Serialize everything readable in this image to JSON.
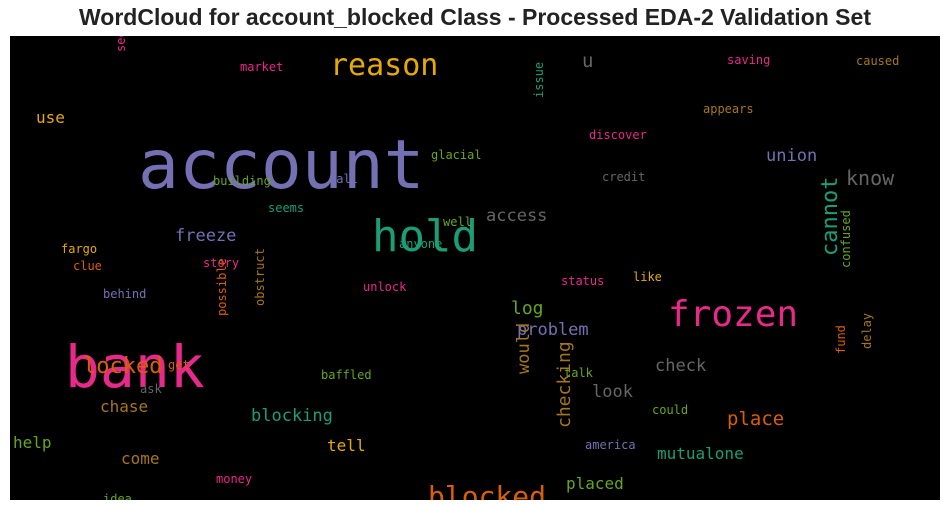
{
  "title": "WordCloud for account_blocked Class - Processed EDA-2 Validation Set",
  "chart_data": {
    "type": "wordcloud",
    "title": "WordCloud for account_blocked Class - Processed EDA-2 Validation Set",
    "background": "#000000",
    "words": [
      {
        "text": "account",
        "weight": 100,
        "color": "#7570b3",
        "orientation": "horizontal"
      },
      {
        "text": "bank",
        "weight": 85,
        "color": "#e7298a",
        "orientation": "horizontal"
      },
      {
        "text": "hold",
        "weight": 62,
        "color": "#1b9e77",
        "orientation": "horizontal"
      },
      {
        "text": "frozen",
        "weight": 52,
        "color": "#e7298a",
        "orientation": "horizontal"
      },
      {
        "text": "reason",
        "weight": 45,
        "color": "#e6ab02",
        "orientation": "horizontal"
      },
      {
        "text": "blocked",
        "weight": 42,
        "color": "#d95f02",
        "orientation": "horizontal"
      },
      {
        "text": "cannot",
        "weight": 33,
        "color": "#1b9e77",
        "orientation": "vertical"
      },
      {
        "text": "locked",
        "weight": 33,
        "color": "#d95f02",
        "orientation": "horizontal"
      },
      {
        "text": "know",
        "weight": 30,
        "color": "#666666",
        "orientation": "horizontal"
      },
      {
        "text": "place",
        "weight": 28,
        "color": "#d95f02",
        "orientation": "horizontal"
      },
      {
        "text": "u",
        "weight": 28,
        "color": "#666666",
        "orientation": "horizontal"
      },
      {
        "text": "checking",
        "weight": 27,
        "color": "#a6761d",
        "orientation": "vertical"
      },
      {
        "text": "log",
        "weight": 27,
        "color": "#66a61e",
        "orientation": "horizontal"
      },
      {
        "text": "would",
        "weight": 26,
        "color": "#a6761d",
        "orientation": "vertical"
      },
      {
        "text": "freeze",
        "weight": 25,
        "color": "#7570b3",
        "orientation": "horizontal"
      },
      {
        "text": "access",
        "weight": 25,
        "color": "#666666",
        "orientation": "horizontal"
      },
      {
        "text": "union",
        "weight": 25,
        "color": "#7570b3",
        "orientation": "horizontal"
      },
      {
        "text": "problem",
        "weight": 25,
        "color": "#7570b3",
        "orientation": "horizontal"
      },
      {
        "text": "check",
        "weight": 25,
        "color": "#666666",
        "orientation": "horizontal"
      },
      {
        "text": "look",
        "weight": 25,
        "color": "#666666",
        "orientation": "horizontal"
      },
      {
        "text": "blocking",
        "weight": 25,
        "color": "#1b9e77",
        "orientation": "horizontal"
      },
      {
        "text": "chase",
        "weight": 24,
        "color": "#a6761d",
        "orientation": "horizontal"
      },
      {
        "text": "placed",
        "weight": 24,
        "color": "#66a61e",
        "orientation": "horizontal"
      },
      {
        "text": "mutualone",
        "weight": 24,
        "color": "#1b9e77",
        "orientation": "horizontal"
      },
      {
        "text": "tell",
        "weight": 24,
        "color": "#e6ab02",
        "orientation": "horizontal"
      },
      {
        "text": "come",
        "weight": 23,
        "color": "#a6761d",
        "orientation": "horizontal"
      },
      {
        "text": "help",
        "weight": 23,
        "color": "#66a61e",
        "orientation": "horizontal"
      },
      {
        "text": "use",
        "weight": 23,
        "color": "#e6ab02",
        "orientation": "horizontal"
      },
      {
        "text": "glacial",
        "weight": 18,
        "color": "#66a61e",
        "orientation": "horizontal"
      },
      {
        "text": "issue",
        "weight": 18,
        "color": "#1b9e77",
        "orientation": "vertical"
      },
      {
        "text": "discover",
        "weight": 18,
        "color": "#e7298a",
        "orientation": "horizontal"
      },
      {
        "text": "appears",
        "weight": 18,
        "color": "#a6761d",
        "orientation": "horizontal"
      },
      {
        "text": "saving",
        "weight": 18,
        "color": "#e7298a",
        "orientation": "horizontal"
      },
      {
        "text": "caused",
        "weight": 18,
        "color": "#a6761d",
        "orientation": "horizontal"
      },
      {
        "text": "market",
        "weight": 17,
        "color": "#e7298a",
        "orientation": "horizontal"
      },
      {
        "text": "see",
        "weight": 17,
        "color": "#e7298a",
        "orientation": "vertical"
      },
      {
        "text": "building",
        "weight": 17,
        "color": "#66a61e",
        "orientation": "horizontal"
      },
      {
        "text": "call",
        "weight": 17,
        "color": "#7570b3",
        "orientation": "horizontal"
      },
      {
        "text": "credit",
        "weight": 17,
        "color": "#666666",
        "orientation": "horizontal"
      },
      {
        "text": "seems",
        "weight": 17,
        "color": "#1b9e77",
        "orientation": "horizontal"
      },
      {
        "text": "well",
        "weight": 17,
        "color": "#66a61e",
        "orientation": "horizontal"
      },
      {
        "text": "anyone",
        "weight": 17,
        "color": "#1b9e77",
        "orientation": "horizontal"
      },
      {
        "text": "fargo",
        "weight": 17,
        "color": "#e6ab02",
        "orientation": "horizontal"
      },
      {
        "text": "clue",
        "weight": 17,
        "color": "#d95f02",
        "orientation": "horizontal"
      },
      {
        "text": "story",
        "weight": 17,
        "color": "#e7298a",
        "orientation": "horizontal"
      },
      {
        "text": "unlock",
        "weight": 17,
        "color": "#e7298a",
        "orientation": "horizontal"
      },
      {
        "text": "status",
        "weight": 17,
        "color": "#e7298a",
        "orientation": "horizontal"
      },
      {
        "text": "like",
        "weight": 17,
        "color": "#e6ab02",
        "orientation": "horizontal"
      },
      {
        "text": "behind",
        "weight": 17,
        "color": "#7570b3",
        "orientation": "horizontal"
      },
      {
        "text": "obstruct",
        "weight": 17,
        "color": "#a6761d",
        "orientation": "vertical"
      },
      {
        "text": "confused",
        "weight": 17,
        "color": "#66a61e",
        "orientation": "vertical"
      },
      {
        "text": "get",
        "weight": 17,
        "color": "#d95f02",
        "orientation": "horizontal"
      },
      {
        "text": "possible",
        "weight": 17,
        "color": "#d95f02",
        "orientation": "vertical"
      },
      {
        "text": "baffled",
        "weight": 17,
        "color": "#66a61e",
        "orientation": "horizontal"
      },
      {
        "text": "talk",
        "weight": 17,
        "color": "#66a61e",
        "orientation": "horizontal"
      },
      {
        "text": "ask",
        "weight": 17,
        "color": "#666666",
        "orientation": "horizontal"
      },
      {
        "text": "fund",
        "weight": 17,
        "color": "#d95f02",
        "orientation": "vertical"
      },
      {
        "text": "delay",
        "weight": 17,
        "color": "#a6761d",
        "orientation": "vertical"
      },
      {
        "text": "could",
        "weight": 17,
        "color": "#66a61e",
        "orientation": "horizontal"
      },
      {
        "text": "america",
        "weight": 17,
        "color": "#7570b3",
        "orientation": "horizontal"
      },
      {
        "text": "money",
        "weight": 17,
        "color": "#e7298a",
        "orientation": "horizontal"
      },
      {
        "text": "idea",
        "weight": 17,
        "color": "#66a61e",
        "orientation": "horizontal"
      }
    ]
  }
}
